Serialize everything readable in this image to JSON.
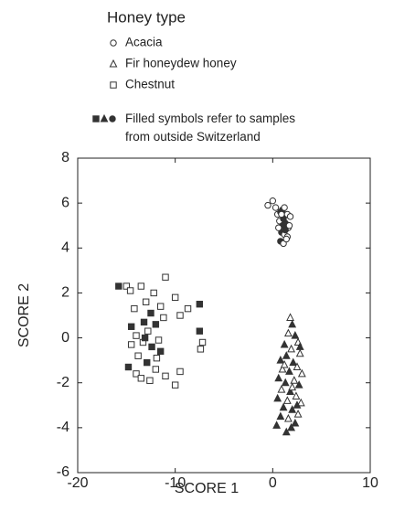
{
  "chart_data": {
    "type": "scatter",
    "legend_title": "Honey type",
    "legend_note": "Filled symbols refer to samples from outside Switzerland",
    "xlabel": "SCORE 1",
    "ylabel": "SCORE 2",
    "xlim": [
      -20,
      10
    ],
    "ylim": [
      -6,
      8
    ],
    "xticks": [
      -20,
      -10,
      0,
      10
    ],
    "yticks": [
      -6,
      -4,
      -2,
      0,
      2,
      4,
      6,
      8
    ],
    "series": [
      {
        "name": "Acacia",
        "marker": "circle",
        "color": "#333333",
        "x": [
          -0.5,
          0,
          0.3,
          0.5,
          0.8,
          1.0,
          1.2,
          1.5,
          1.8,
          0.7,
          1.0,
          1.3,
          1.6,
          0.9,
          1.2,
          1.5,
          0.8,
          1.1,
          1.4,
          0.6,
          1.1,
          0.9,
          1.7,
          1.3
        ],
        "y": [
          5.9,
          6.1,
          5.8,
          5.5,
          5.6,
          5.7,
          5.8,
          5.5,
          5.4,
          5.2,
          5.0,
          5.1,
          4.9,
          4.7,
          4.6,
          4.5,
          4.3,
          4.2,
          4.4,
          4.9,
          5.3,
          5.5,
          5.0,
          4.8
        ],
        "filled": [
          false,
          false,
          false,
          false,
          true,
          true,
          false,
          false,
          false,
          false,
          true,
          true,
          false,
          true,
          false,
          false,
          true,
          false,
          false,
          false,
          true,
          false,
          false,
          true
        ]
      },
      {
        "name": "Fir honeydew honey",
        "marker": "triangle",
        "color": "#333333",
        "x": [
          1.8,
          2.0,
          1.6,
          2.3,
          1.2,
          2.6,
          1.9,
          1.4,
          2.8,
          0.8,
          2.1,
          2.5,
          1.0,
          1.7,
          3.0,
          0.6,
          2.2,
          1.3,
          2.7,
          0.9,
          1.8,
          2.4,
          0.5,
          1.5,
          2.9,
          1.1,
          2.0,
          2.6,
          0.8,
          1.6,
          2.3,
          1.9,
          1.4,
          2.5,
          1.2,
          2.0,
          0.4,
          2.8
        ],
        "y": [
          0.9,
          0.6,
          0.2,
          0.1,
          -0.3,
          -0.2,
          -0.5,
          -0.8,
          -0.7,
          -1.0,
          -1.1,
          -1.3,
          -1.4,
          -1.5,
          -1.6,
          -1.8,
          -1.9,
          -2.0,
          -2.1,
          -2.3,
          -2.4,
          -2.6,
          -2.7,
          -2.8,
          -2.9,
          -3.1,
          -3.2,
          -3.4,
          -3.5,
          -3.6,
          -3.8,
          -4.0,
          -4.2,
          -3.0,
          -1.2,
          -2.2,
          -3.9,
          -0.4
        ],
        "filled": [
          false,
          true,
          false,
          true,
          true,
          false,
          false,
          true,
          false,
          true,
          true,
          false,
          false,
          true,
          false,
          true,
          false,
          true,
          true,
          false,
          true,
          false,
          true,
          false,
          false,
          true,
          true,
          false,
          true,
          false,
          true,
          true,
          true,
          true,
          false,
          false,
          true,
          true
        ]
      },
      {
        "name": "Chestnut",
        "marker": "square",
        "color": "#333333",
        "x": [
          -15.8,
          -15,
          -14.6,
          -13.5,
          -12.2,
          -11,
          -10,
          -8.7,
          -7.5,
          -14.2,
          -13,
          -12.5,
          -11.5,
          -9.5,
          -14.5,
          -13.2,
          -12.8,
          -12.0,
          -11.2,
          -14.0,
          -13.3,
          -12.4,
          -11.7,
          -7.5,
          -7.2,
          -7.4,
          -13.8,
          -12.9,
          -11.9,
          -14.8,
          -14.0,
          -13.5,
          -12.0,
          -11.0,
          -9.5,
          -10,
          -12.6,
          -14.5,
          -13.1,
          -11.5
        ],
        "y": [
          2.3,
          2.3,
          2.1,
          2.3,
          2.0,
          2.7,
          1.8,
          1.3,
          1.5,
          1.3,
          1.6,
          1.1,
          1.4,
          1.0,
          0.5,
          0.7,
          0.3,
          0.6,
          0.9,
          0.1,
          -0.2,
          -0.4,
          -0.1,
          0.3,
          -0.2,
          -0.5,
          -0.8,
          -1.1,
          -0.9,
          -1.3,
          -1.6,
          -1.8,
          -1.4,
          -1.7,
          -1.5,
          -2.1,
          -1.9,
          -0.3,
          0.0,
          -0.6
        ],
        "filled": [
          true,
          false,
          false,
          false,
          false,
          false,
          false,
          false,
          true,
          false,
          false,
          true,
          false,
          false,
          true,
          true,
          false,
          true,
          false,
          false,
          false,
          true,
          false,
          true,
          false,
          false,
          false,
          true,
          false,
          true,
          false,
          false,
          false,
          false,
          false,
          false,
          false,
          false,
          true,
          true
        ]
      }
    ]
  }
}
